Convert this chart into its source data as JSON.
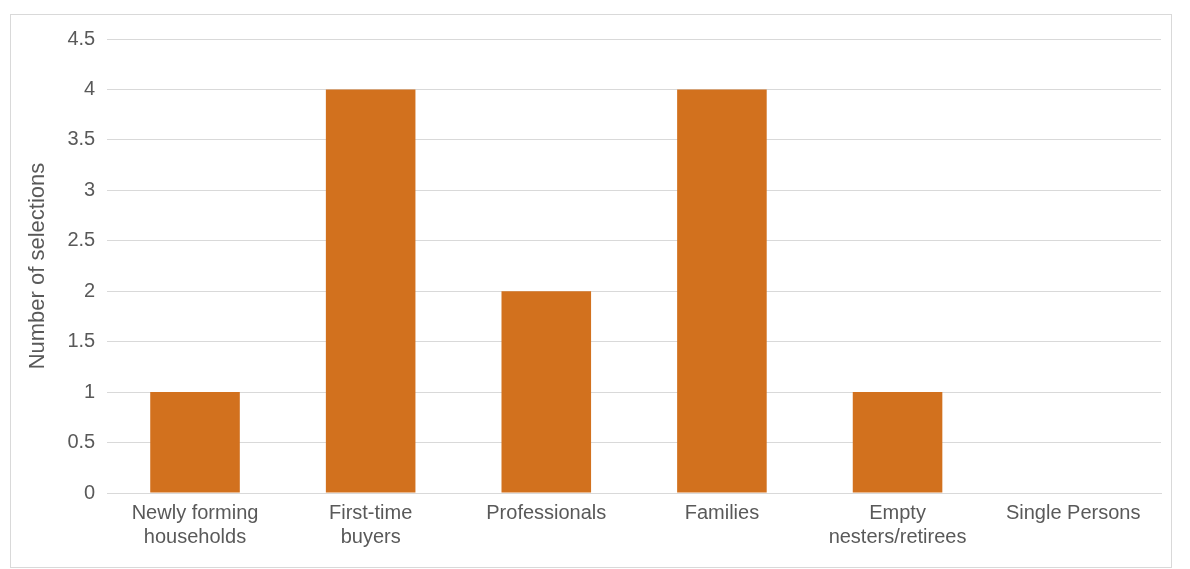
{
  "chart_data": {
    "type": "bar",
    "ylabel": "Number of selections",
    "categories": [
      [
        "Newly forming",
        "households"
      ],
      [
        "First-time",
        "buyers"
      ],
      "Professionals",
      "Families",
      [
        "Empty",
        "nesters/retirees"
      ],
      "Single Persons"
    ],
    "values": [
      1,
      4,
      2,
      4,
      1,
      0
    ],
    "color": "#d2711e",
    "ylim": [
      0,
      4.5
    ],
    "yticks": [
      0,
      0.5,
      1,
      1.5,
      2,
      2.5,
      3,
      3.5,
      4,
      4.5
    ],
    "grid": "y"
  }
}
